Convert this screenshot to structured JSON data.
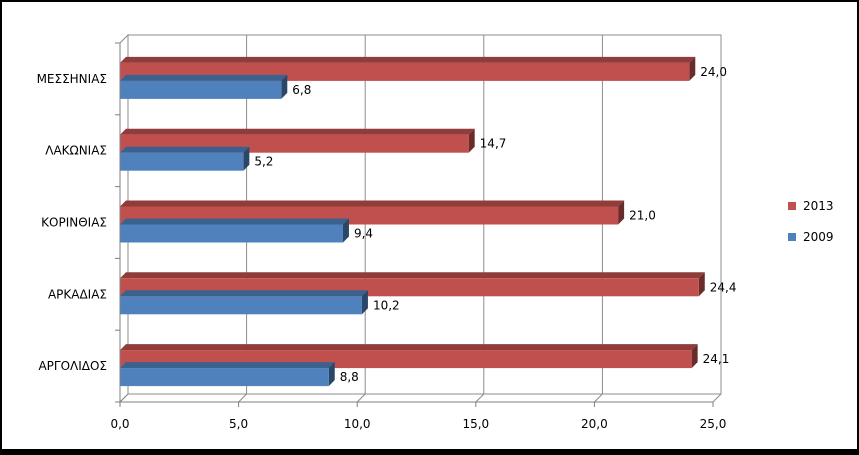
{
  "chart_data": {
    "type": "bar",
    "orientation": "horizontal",
    "categories": [
      "ΑΡΓΟΛΙΔΟΣ",
      "ΑΡΚΑΔΙΑΣ",
      "ΚΟΡΙΝΘΙΑΣ",
      "ΛΑΚΩΝΙΑΣ",
      "ΜΕΣΣΗΝΙΑΣ"
    ],
    "series": [
      {
        "name": "2013",
        "color": "#C0504D",
        "values": [
          24.1,
          24.4,
          21.0,
          14.7,
          24.0
        ],
        "labels": [
          "24,1",
          "24,4",
          "21,0",
          "14,7",
          "24,0"
        ]
      },
      {
        "name": "2009",
        "color": "#4F81BD",
        "values": [
          8.8,
          10.2,
          9.4,
          5.2,
          6.8
        ],
        "labels": [
          "8,8",
          "10,2",
          "9,4",
          "5,2",
          "6,8"
        ]
      }
    ],
    "xlim": [
      0,
      25
    ],
    "xticks": [
      0,
      5,
      10,
      15,
      20,
      25
    ],
    "xtick_labels": [
      "0,0",
      "5,0",
      "10,0",
      "15,0",
      "20,0",
      "25,0"
    ],
    "grid": true,
    "legend_position": "right",
    "title": "",
    "xlabel": "",
    "ylabel": ""
  }
}
